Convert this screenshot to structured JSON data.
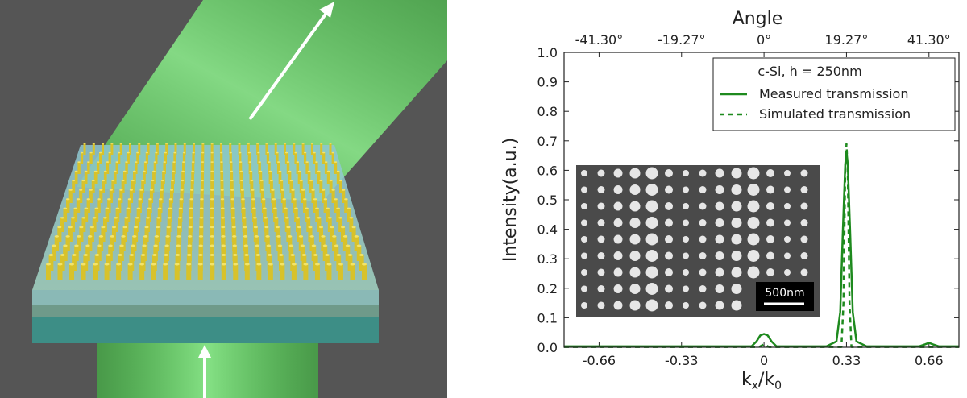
{
  "chart_data": {
    "type": "line",
    "title": "",
    "xlabel_base": "k",
    "xlabel_sub_x": "x",
    "xlabel_slash": "/k",
    "xlabel_sub_0": "0",
    "ylabel": "Intensity(a.u.)",
    "top_axis_label": "Angle",
    "xlim": [
      -0.8,
      0.78
    ],
    "ylim": [
      0.0,
      1.0
    ],
    "x_ticks": [
      -0.66,
      -0.33,
      0,
      0.33,
      0.66
    ],
    "x_tick_labels": [
      "-0.66",
      "-0.33",
      "0",
      "0.33",
      "0.66"
    ],
    "y_ticks": [
      0.0,
      0.1,
      0.2,
      0.3,
      0.4,
      0.5,
      0.6,
      0.7,
      0.8,
      0.9,
      1.0
    ],
    "y_tick_labels": [
      "0.0",
      "0.1",
      "0.2",
      "0.3",
      "0.4",
      "0.5",
      "0.6",
      "0.7",
      "0.8",
      "0.9",
      "1.0"
    ],
    "top_ticks": [
      -0.66,
      -0.33,
      0,
      0.33,
      0.66
    ],
    "top_tick_labels": [
      "-41.30°",
      "-19.27°",
      "0°",
      "19.27°",
      "41.30°"
    ],
    "legend_title": "c-Si, h = 250nm",
    "legend_position": "top-right",
    "series": [
      {
        "name": "Measured transmission",
        "style": "solid",
        "color": "#1e8a1e",
        "x": [
          -0.8,
          -0.05,
          -0.03,
          -0.015,
          0.0,
          0.015,
          0.03,
          0.05,
          0.25,
          0.29,
          0.305,
          0.315,
          0.325,
          0.33,
          0.335,
          0.345,
          0.355,
          0.37,
          0.41,
          0.62,
          0.645,
          0.66,
          0.675,
          0.7,
          0.78
        ],
        "y": [
          0.003,
          0.003,
          0.02,
          0.04,
          0.045,
          0.04,
          0.02,
          0.003,
          0.003,
          0.02,
          0.12,
          0.38,
          0.62,
          0.665,
          0.62,
          0.38,
          0.12,
          0.02,
          0.003,
          0.003,
          0.01,
          0.015,
          0.01,
          0.003,
          0.003
        ]
      },
      {
        "name": "Simulated transmission",
        "style": "dashed",
        "color": "#1e8a1e",
        "x": [
          -0.8,
          -0.02,
          0.0,
          0.02,
          0.31,
          0.318,
          0.325,
          0.33,
          0.335,
          0.342,
          0.35,
          0.78
        ],
        "y": [
          0.001,
          0.001,
          0.01,
          0.001,
          0.001,
          0.15,
          0.6,
          0.69,
          0.6,
          0.15,
          0.001,
          0.001
        ]
      }
    ],
    "inset_scale_bar_label": "500nm"
  },
  "colors": {
    "series": "#1e8a1e",
    "beam": "#6ee06e",
    "pillars": "#d8c22a",
    "substrate": "#7fb8c8",
    "background": "#555555"
  }
}
